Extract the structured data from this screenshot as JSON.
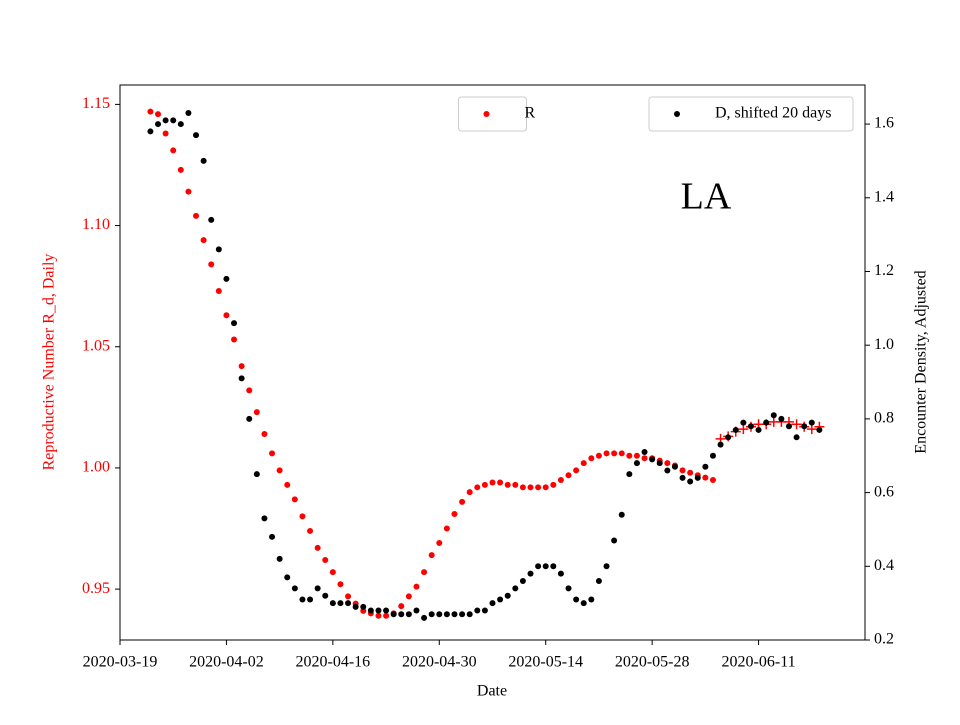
{
  "chart_data": {
    "type": "scatter",
    "annotation": "LA",
    "xlabel": "Date",
    "ylabel": "Reproductive Number R_d, Daily",
    "ylabel_color": "#ff0000",
    "y2label": "Encounter Density, Adjusted",
    "xlim": [
      "2020-03-19",
      "2020-06-25"
    ],
    "xticks": [
      "2020-03-19",
      "2020-04-02",
      "2020-04-16",
      "2020-04-30",
      "2020-05-14",
      "2020-05-28",
      "2020-06-11"
    ],
    "ylim": [
      0.929,
      1.158
    ],
    "yticks": [
      0.95,
      {
        "value": 1,
        "label": "1.00"
      },
      1.05,
      {
        "value": 1.1,
        "label": "1.10"
      },
      1.15
    ],
    "y2lim": [
      0.2,
      1.706
    ],
    "y2ticks": [
      0.2,
      0.4,
      0.6,
      0.8,
      {
        "value": 1,
        "label": "1.0"
      },
      1.2,
      1.4,
      1.6
    ],
    "x": [
      "2020-03-23",
      "2020-03-24",
      "2020-03-25",
      "2020-03-26",
      "2020-03-27",
      "2020-03-28",
      "2020-03-29",
      "2020-03-30",
      "2020-03-31",
      "2020-04-01",
      "2020-04-02",
      "2020-04-03",
      "2020-04-04",
      "2020-04-05",
      "2020-04-06",
      "2020-04-07",
      "2020-04-08",
      "2020-04-09",
      "2020-04-10",
      "2020-04-11",
      "2020-04-12",
      "2020-04-13",
      "2020-04-14",
      "2020-04-15",
      "2020-04-16",
      "2020-04-17",
      "2020-04-18",
      "2020-04-19",
      "2020-04-20",
      "2020-04-21",
      "2020-04-22",
      "2020-04-23",
      "2020-04-24",
      "2020-04-25",
      "2020-04-26",
      "2020-04-27",
      "2020-04-28",
      "2020-04-29",
      "2020-04-30",
      "2020-05-01",
      "2020-05-02",
      "2020-05-03",
      "2020-05-04",
      "2020-05-05",
      "2020-05-06",
      "2020-05-07",
      "2020-05-08",
      "2020-05-09",
      "2020-05-10",
      "2020-05-11",
      "2020-05-12",
      "2020-05-13",
      "2020-05-14",
      "2020-05-15",
      "2020-05-16",
      "2020-05-17",
      "2020-05-18",
      "2020-05-19",
      "2020-05-20",
      "2020-05-21",
      "2020-05-22",
      "2020-05-23",
      "2020-05-24",
      "2020-05-25",
      "2020-05-26",
      "2020-05-27",
      "2020-05-28",
      "2020-05-29",
      "2020-05-30",
      "2020-05-31",
      "2020-06-01",
      "2020-06-02",
      "2020-06-03",
      "2020-06-04",
      "2020-06-05",
      "2020-06-06",
      "2020-06-07",
      "2020-06-08",
      "2020-06-09",
      "2020-06-10",
      "2020-06-11",
      "2020-06-12",
      "2020-06-13",
      "2020-06-14",
      "2020-06-15",
      "2020-06-16",
      "2020-06-17",
      "2020-06-18",
      "2020-06-19"
    ],
    "series": [
      {
        "name": "R",
        "color": "#ff0000",
        "marker": "dot",
        "legend_loc": "upper center",
        "values": [
          1.147,
          1.146,
          1.138,
          1.131,
          1.123,
          1.114,
          1.104,
          1.094,
          1.084,
          1.073,
          1.063,
          1.053,
          1.042,
          1.032,
          1.023,
          1.014,
          1.006,
          0.999,
          0.993,
          0.987,
          0.98,
          0.974,
          0.967,
          0.962,
          0.957,
          0.952,
          0.947,
          0.944,
          0.941,
          0.94,
          0.939,
          0.939,
          0.94,
          0.943,
          0.947,
          0.951,
          0.957,
          0.964,
          0.969,
          0.975,
          0.981,
          0.986,
          0.99,
          0.992,
          0.993,
          0.994,
          0.994,
          0.993,
          0.993,
          0.992,
          0.992,
          0.992,
          0.992,
          0.993,
          0.995,
          0.997,
          0.999,
          1.002,
          1.004,
          1.005,
          1.006,
          1.006,
          1.006,
          1.005,
          1.005,
          1.004,
          1.004,
          1.003,
          1.002,
          1.001,
          0.999,
          0.998,
          0.997,
          0.996,
          0.995,
          null,
          null,
          null,
          null,
          null,
          null,
          null,
          null,
          null,
          null,
          null,
          null,
          null,
          null
        ]
      },
      {
        "color": "#ff0000",
        "marker": "plus",
        "values": [
          null,
          null,
          null,
          null,
          null,
          null,
          null,
          null,
          null,
          null,
          null,
          null,
          null,
          null,
          null,
          null,
          null,
          null,
          null,
          null,
          null,
          null,
          null,
          null,
          null,
          null,
          null,
          null,
          null,
          null,
          null,
          null,
          null,
          null,
          null,
          null,
          null,
          null,
          null,
          null,
          null,
          null,
          null,
          null,
          null,
          null,
          null,
          null,
          null,
          null,
          null,
          null,
          null,
          null,
          null,
          null,
          null,
          null,
          null,
          null,
          null,
          null,
          null,
          null,
          null,
          null,
          null,
          null,
          null,
          null,
          null,
          null,
          null,
          null,
          null,
          1.012,
          1.013,
          1.015,
          1.016,
          1.017,
          1.018,
          1.018,
          1.019,
          1.019,
          1.019,
          1.018,
          1.017,
          1.016,
          1.017
        ]
      },
      {
        "name": "D, shifted 20 days",
        "color": "#000000",
        "marker": "dot",
        "axis": "y2",
        "legend_loc": "upper right",
        "values": [
          1.58,
          1.6,
          1.61,
          1.61,
          1.6,
          1.63,
          1.57,
          1.5,
          1.34,
          1.26,
          1.18,
          1.06,
          0.91,
          0.8,
          0.65,
          0.53,
          0.48,
          0.42,
          0.37,
          0.34,
          0.31,
          0.31,
          0.34,
          0.32,
          0.3,
          0.3,
          0.3,
          0.29,
          0.29,
          0.28,
          0.28,
          0.28,
          0.27,
          0.27,
          0.27,
          0.28,
          0.26,
          0.27,
          0.27,
          0.27,
          0.27,
          0.27,
          0.27,
          0.28,
          0.28,
          0.3,
          0.31,
          0.32,
          0.34,
          0.36,
          0.38,
          0.4,
          0.4,
          0.4,
          0.38,
          0.34,
          0.31,
          0.3,
          0.31,
          0.36,
          0.4,
          0.47,
          0.54,
          0.65,
          0.68,
          0.71,
          0.69,
          0.68,
          0.66,
          0.67,
          0.64,
          0.63,
          0.64,
          0.67,
          0.7,
          0.73,
          0.75,
          0.77,
          0.79,
          0.78,
          0.77,
          0.79,
          0.81,
          0.8,
          0.78,
          0.75,
          0.78,
          0.79,
          0.77
        ]
      }
    ]
  }
}
